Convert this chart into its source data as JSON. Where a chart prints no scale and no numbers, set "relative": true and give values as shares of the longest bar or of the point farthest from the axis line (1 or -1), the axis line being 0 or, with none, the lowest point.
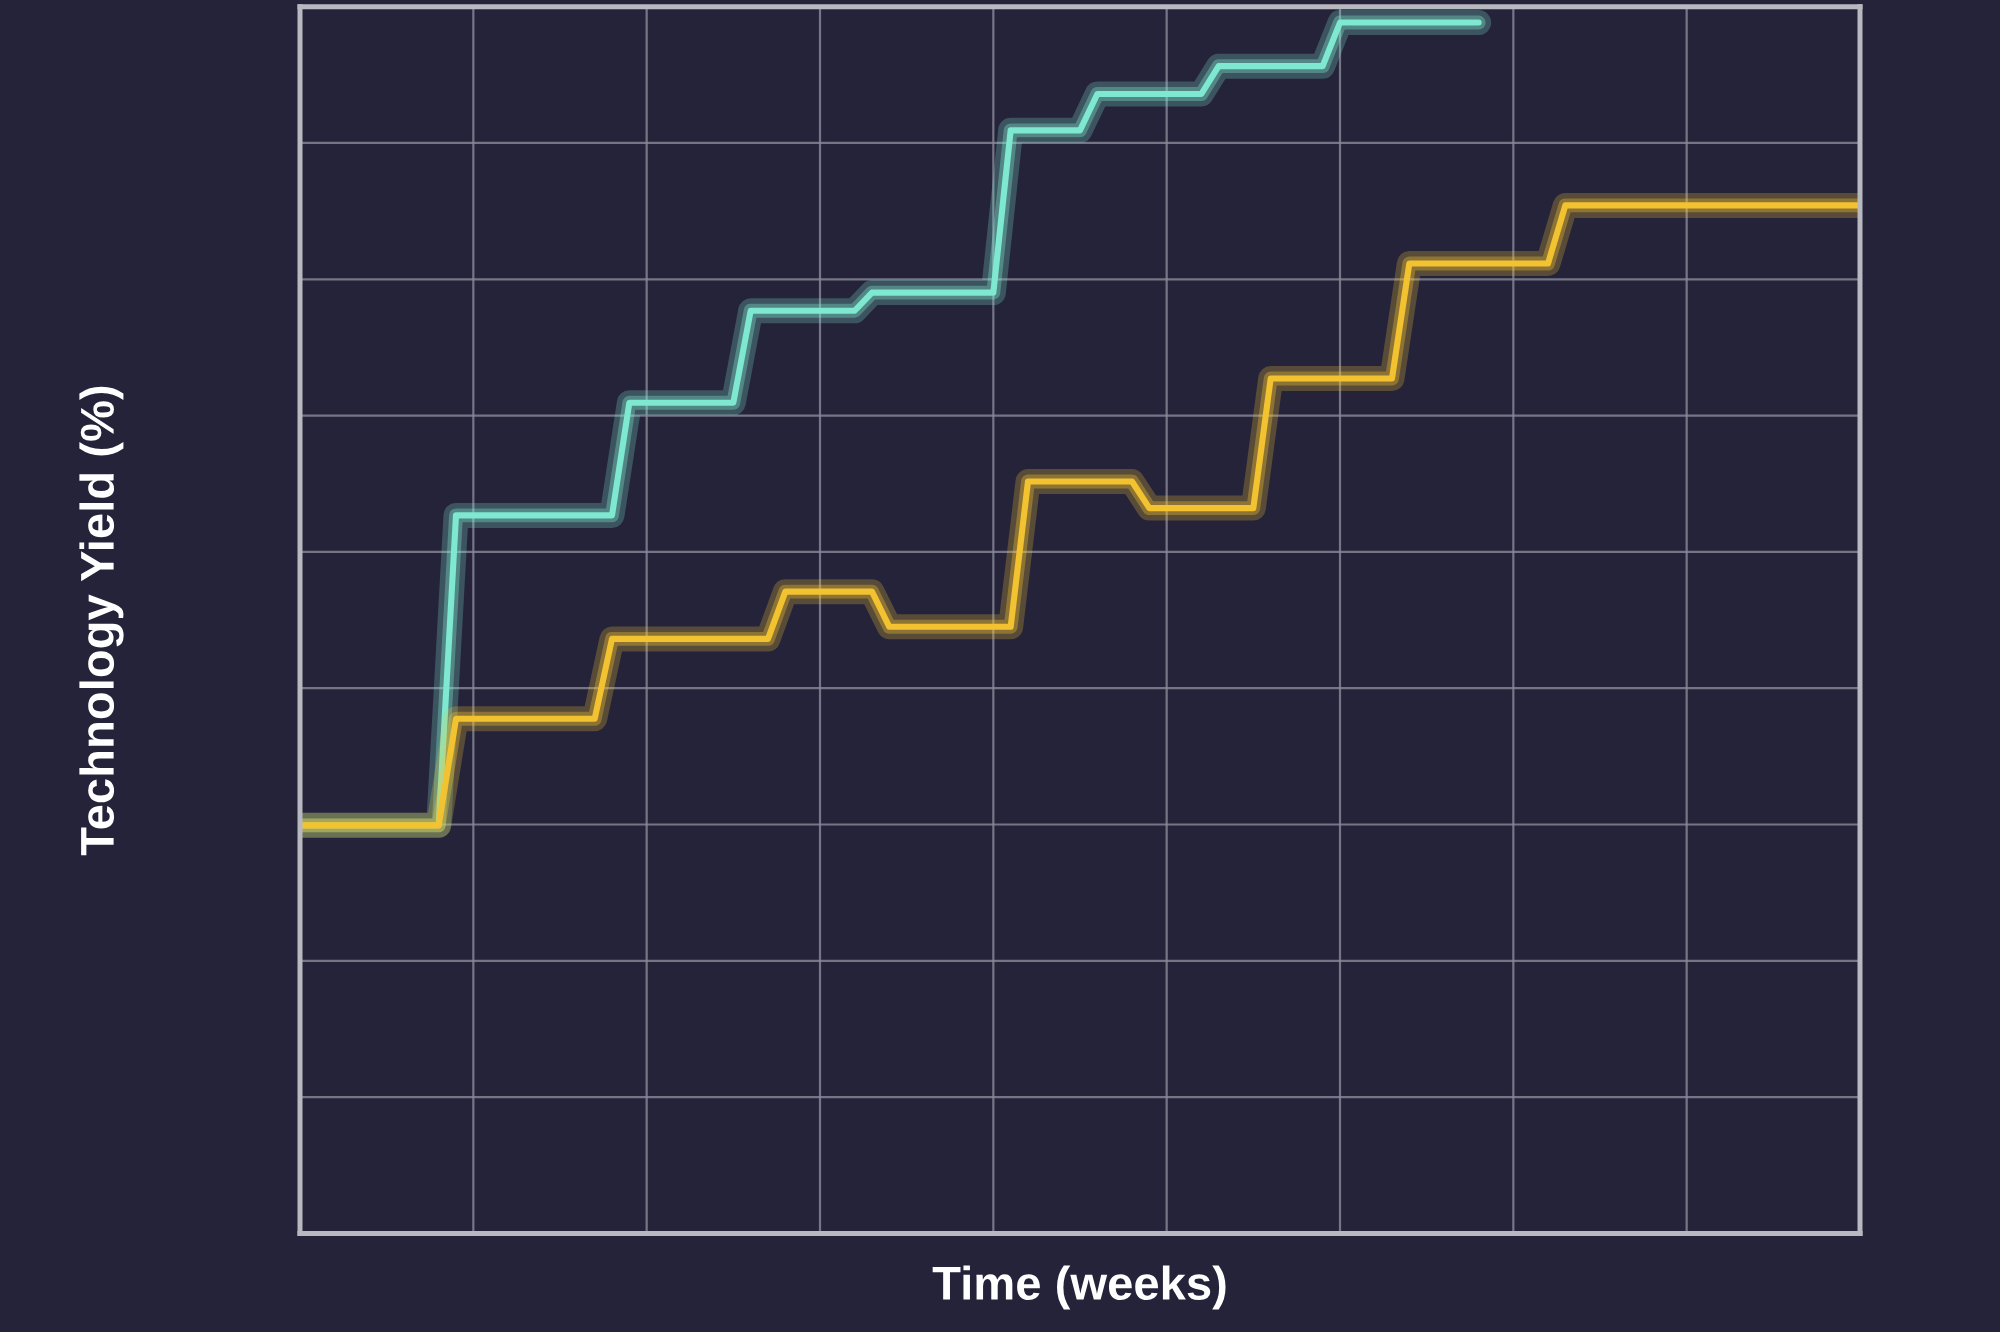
{
  "chart_data": {
    "type": "line",
    "relative": true,
    "xlabel": "Time (weeks)",
    "ylabel": "Technology Yield (%)",
    "grid": true,
    "legend": false,
    "categories": [
      null,
      null,
      null,
      null,
      null,
      null,
      null,
      null,
      null,
      null,
      null,
      null,
      null,
      null,
      null,
      null,
      null,
      null,
      null,
      null,
      null,
      null,
      null,
      null,
      null,
      null,
      null,
      null,
      null,
      null,
      null,
      null,
      null,
      null,
      null,
      null,
      null,
      null,
      null,
      null,
      null,
      null,
      null,
      null,
      null,
      null,
      null,
      null,
      null,
      null,
      null,
      null,
      null,
      null,
      null,
      null,
      null,
      null,
      null,
      null,
      null,
      null,
      null,
      null,
      null,
      null,
      null,
      null,
      null,
      null,
      null,
      null,
      null,
      null,
      null,
      null,
      null,
      null,
      null,
      null,
      null,
      null,
      null,
      null,
      null,
      null,
      null,
      null,
      null,
      null,
      null
    ],
    "series": [
      {
        "color": "#7ee8d0",
        "values": [
          0.337,
          0.337,
          0.337,
          0.337,
          0.337,
          0.337,
          0.337,
          0.337,
          0.337,
          0.593,
          0.593,
          0.593,
          0.593,
          0.593,
          0.593,
          0.593,
          0.593,
          0.593,
          0.593,
          0.686,
          0.686,
          0.686,
          0.686,
          0.686,
          0.686,
          0.686,
          0.762,
          0.762,
          0.762,
          0.762,
          0.762,
          0.762,
          0.762,
          0.777,
          0.777,
          0.777,
          0.777,
          0.777,
          0.777,
          0.777,
          0.777,
          0.911,
          0.911,
          0.911,
          0.911,
          0.911,
          0.941,
          0.941,
          0.941,
          0.941,
          0.941,
          0.941,
          0.941,
          0.964,
          0.964,
          0.964,
          0.964,
          0.964,
          0.964,
          0.964,
          1.0,
          1.0,
          1.0,
          1.0,
          1.0,
          1.0,
          1.0,
          1.0,
          1.0,
          null,
          null,
          null,
          null,
          null,
          null,
          null,
          null,
          null,
          null,
          null,
          null,
          null,
          null,
          null,
          null,
          null,
          null,
          null,
          null,
          null,
          null
        ]
      },
      {
        "color": "#f2c230",
        "values": [
          0.337,
          0.337,
          0.337,
          0.337,
          0.337,
          0.337,
          0.337,
          0.337,
          0.337,
          0.425,
          0.425,
          0.425,
          0.425,
          0.425,
          0.425,
          0.425,
          0.425,
          0.425,
          0.491,
          0.491,
          0.491,
          0.491,
          0.491,
          0.491,
          0.491,
          0.491,
          0.491,
          0.491,
          0.53,
          0.53,
          0.53,
          0.53,
          0.53,
          0.53,
          0.501,
          0.501,
          0.501,
          0.501,
          0.501,
          0.501,
          0.501,
          0.501,
          0.621,
          0.621,
          0.621,
          0.621,
          0.621,
          0.621,
          0.621,
          0.599,
          0.599,
          0.599,
          0.599,
          0.599,
          0.599,
          0.599,
          0.706,
          0.706,
          0.706,
          0.706,
          0.706,
          0.706,
          0.706,
          0.706,
          0.801,
          0.801,
          0.801,
          0.801,
          0.801,
          0.801,
          0.801,
          0.801,
          0.801,
          0.849,
          0.849,
          0.849,
          0.849,
          0.849,
          0.849,
          0.849,
          0.849,
          0.849,
          0.849,
          0.849,
          0.849,
          0.849,
          0.849,
          0.849,
          0.849,
          0.849,
          0.849
        ]
      }
    ]
  }
}
